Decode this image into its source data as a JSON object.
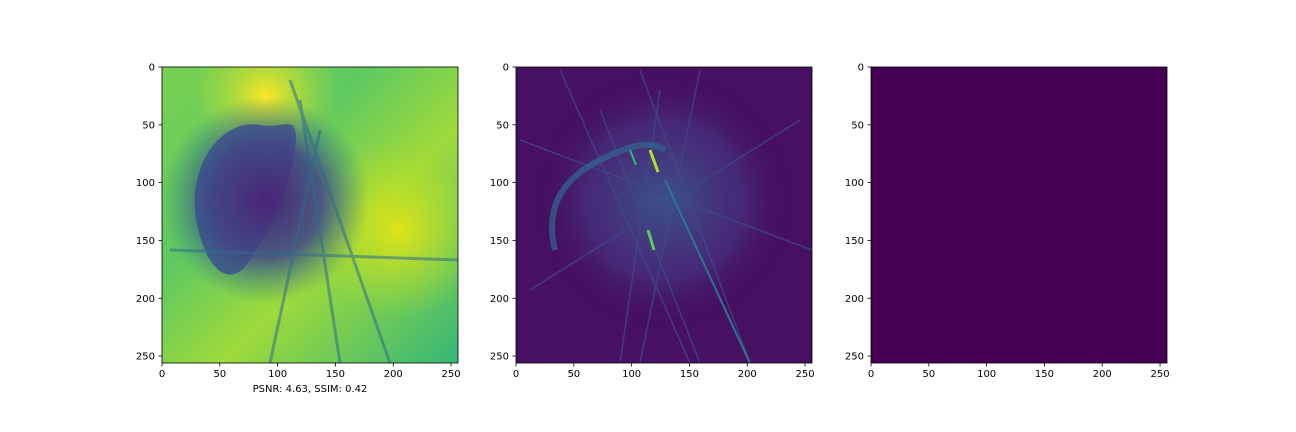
{
  "chart_data": [
    {
      "type": "heatmap",
      "colormap": "viridis",
      "title": "",
      "xlabel": "PSNR: 4.63, SSIM: 0.42",
      "ylabel": "",
      "xlim": [
        0,
        256
      ],
      "ylim": [
        256,
        0
      ],
      "xticks": [
        0,
        50,
        100,
        150,
        200,
        250
      ],
      "yticks": [
        0,
        50,
        100,
        150,
        200,
        250
      ],
      "content": "reconstruction with bright yellow-green background and dark purple structures",
      "base_level": 0.68
    },
    {
      "type": "heatmap",
      "colormap": "viridis",
      "title": "",
      "xlabel": "",
      "ylabel": "",
      "xlim": [
        0,
        256
      ],
      "ylim": [
        256,
        0
      ],
      "xticks": [
        0,
        50,
        100,
        150,
        200,
        250
      ],
      "yticks": [
        0,
        50,
        100,
        150,
        200,
        250
      ],
      "content": "dark purple background with streak artifacts and bright highlights",
      "base_level": 0.05
    },
    {
      "type": "heatmap",
      "colormap": "viridis",
      "title": "",
      "xlabel": "",
      "ylabel": "",
      "xlim": [
        0,
        256
      ],
      "ylim": [
        256,
        0
      ],
      "xticks": [
        0,
        50,
        100,
        150,
        200,
        250
      ],
      "yticks": [
        0,
        50,
        100,
        150,
        200,
        250
      ],
      "content": "uniform constant field",
      "base_level": 0.0
    }
  ],
  "colors": {
    "viridis_low": "#440154",
    "viridis_mid": "#21908d",
    "viridis_high": "#fde725"
  }
}
